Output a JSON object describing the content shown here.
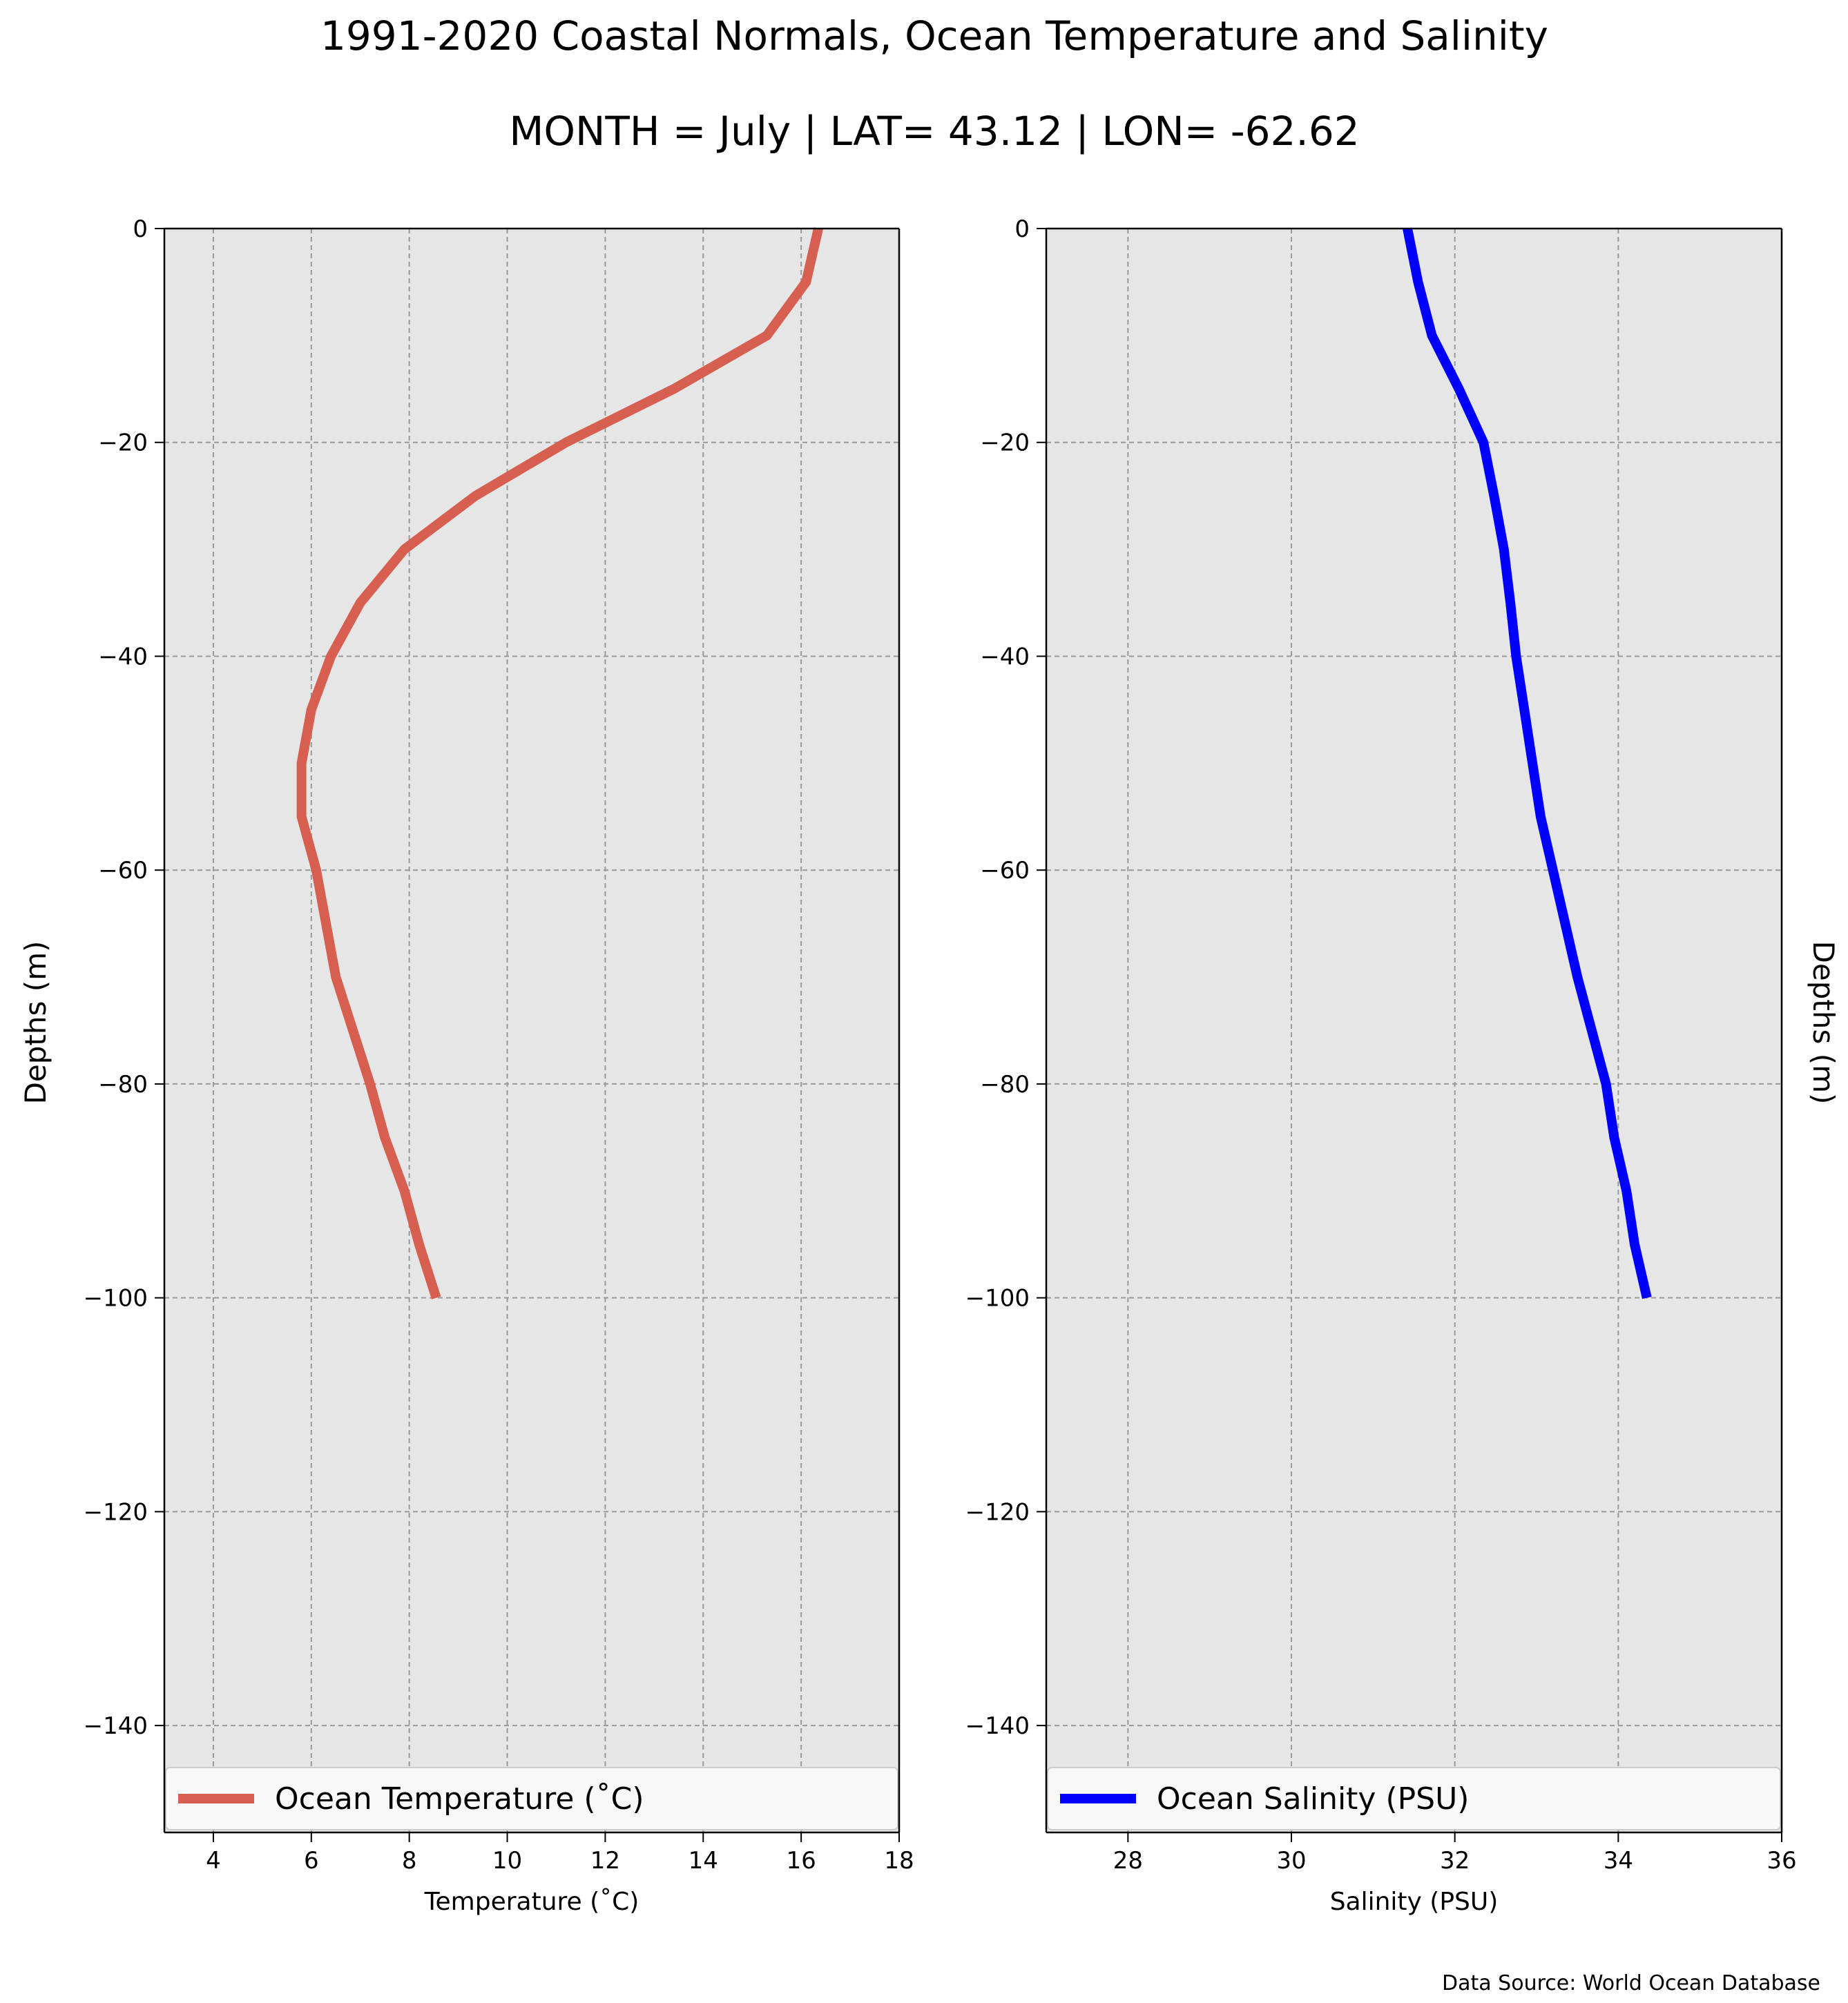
{
  "title": "1991-2020 Coastal Normals, Ocean Temperature and Salinity",
  "subtitle": "MONTH = July | LAT= 43.12 | LON= -62.62",
  "source_note": "Data Source: World Ocean Database",
  "colors": {
    "temperature": "#d65f4f",
    "salinity": "#0000ff",
    "panel_bg": "#e6e6e6",
    "grid": "#999999"
  },
  "chart_data": [
    {
      "type": "line",
      "id": "temperature",
      "series": [
        {
          "name": "Ocean Temperature ($^\\circ$C)",
          "x": [
            16.35,
            16.1,
            15.3,
            13.4,
            11.2,
            9.35,
            7.9,
            7.0,
            6.4,
            6.0,
            5.8,
            5.8,
            6.1,
            6.5,
            7.2,
            7.5,
            7.9,
            8.2,
            8.55
          ],
          "y": [
            0,
            -5,
            -10,
            -15,
            -20,
            -25,
            -30,
            -35,
            -40,
            -45,
            -50,
            -55,
            -60,
            -70,
            -80,
            -85,
            -90,
            -95,
            -100
          ]
        }
      ],
      "legend_label": "Ocean Temperature ($^\\circ$C)",
      "xlabel": "Temperature ($^\\circ$C)",
      "ylabel": "Depths (m)",
      "xlim": [
        3,
        18
      ],
      "ylim": [
        -150,
        0
      ],
      "xticks": [
        "4",
        "6",
        "8",
        "10",
        "12",
        "14",
        "16",
        "18"
      ],
      "xtick_values": [
        4,
        6,
        8,
        10,
        12,
        14,
        16,
        18
      ],
      "yticks": [
        "0",
        "−20",
        "−40",
        "−60",
        "−80",
        "−100",
        "−120",
        "−140"
      ],
      "ytick_values": [
        0,
        -20,
        -40,
        -60,
        -80,
        -100,
        -120,
        -140
      ],
      "grid": true,
      "legend_position": "bottom"
    },
    {
      "type": "line",
      "id": "salinity",
      "series": [
        {
          "name": "Ocean Salinity (PSU)",
          "x": [
            31.42,
            31.55,
            31.72,
            32.05,
            32.35,
            32.48,
            32.6,
            32.68,
            32.75,
            32.85,
            32.95,
            33.05,
            33.2,
            33.5,
            33.85,
            33.95,
            34.1,
            34.2,
            34.35
          ],
          "y": [
            0,
            -5,
            -10,
            -15,
            -20,
            -25,
            -30,
            -35,
            -40,
            -45,
            -50,
            -55,
            -60,
            -70,
            -80,
            -85,
            -90,
            -95,
            -100
          ]
        }
      ],
      "legend_label": "Ocean Salinity (PSU)",
      "xlabel": "Salinity (PSU)",
      "ylabel": "Depths (m)",
      "xlim": [
        27,
        36
      ],
      "ylim": [
        -150,
        0
      ],
      "xticks": [
        "28",
        "30",
        "32",
        "34",
        "36"
      ],
      "xtick_values": [
        28,
        30,
        32,
        34,
        36
      ],
      "yticks": [
        "0",
        "−20",
        "−40",
        "−60",
        "−80",
        "−100",
        "−120",
        "−140"
      ],
      "ytick_values": [
        0,
        -20,
        -40,
        -60,
        -80,
        -100,
        -120,
        -140
      ],
      "grid": true,
      "legend_position": "bottom"
    }
  ]
}
